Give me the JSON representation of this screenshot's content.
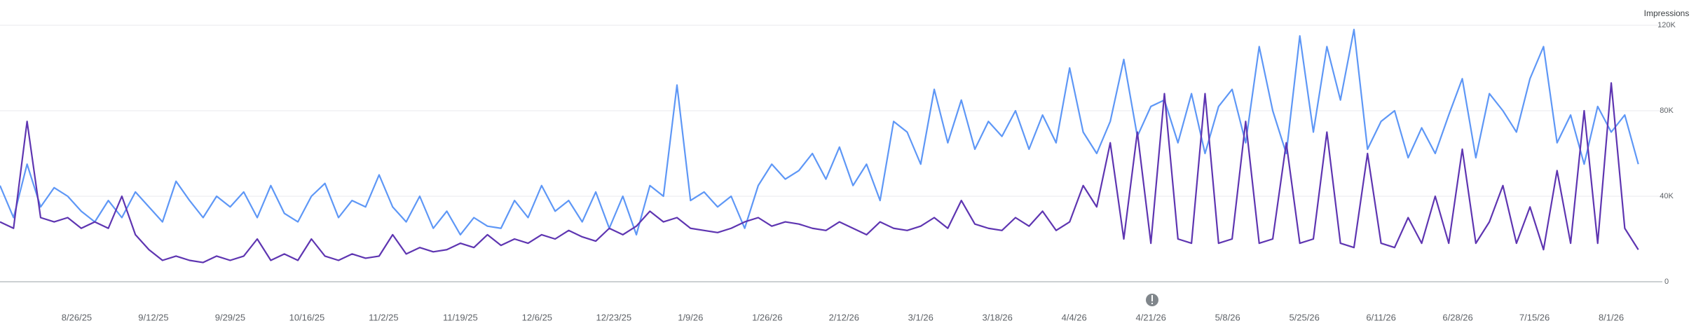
{
  "chart_data": {
    "type": "line",
    "y_label": "Impressions",
    "x": [
      "2025-08-09",
      "2025-08-12",
      "2025-08-15",
      "2025-08-18",
      "2025-08-21",
      "2025-08-24",
      "2025-08-27",
      "2025-08-30",
      "2025-09-02",
      "2025-09-05",
      "2025-09-08",
      "2025-09-11",
      "2025-09-14",
      "2025-09-17",
      "2025-09-20",
      "2025-09-23",
      "2025-09-26",
      "2025-09-29",
      "2025-10-02",
      "2025-10-05",
      "2025-10-08",
      "2025-10-11",
      "2025-10-14",
      "2025-10-17",
      "2025-10-20",
      "2025-10-23",
      "2025-10-26",
      "2025-10-29",
      "2025-11-01",
      "2025-11-04",
      "2025-11-07",
      "2025-11-10",
      "2025-11-13",
      "2025-11-16",
      "2025-11-19",
      "2025-11-22",
      "2025-11-25",
      "2025-11-28",
      "2025-12-01",
      "2025-12-04",
      "2025-12-07",
      "2025-12-10",
      "2025-12-13",
      "2025-12-16",
      "2025-12-19",
      "2025-12-22",
      "2025-12-25",
      "2025-12-28",
      "2025-12-31",
      "2026-01-03",
      "2026-01-06",
      "2026-01-09",
      "2026-01-12",
      "2026-01-15",
      "2026-01-18",
      "2026-01-21",
      "2026-01-24",
      "2026-01-27",
      "2026-01-30",
      "2026-02-02",
      "2026-02-05",
      "2026-02-08",
      "2026-02-11",
      "2026-02-14",
      "2026-02-17",
      "2026-02-20",
      "2026-02-23",
      "2026-02-26",
      "2026-03-01",
      "2026-03-04",
      "2026-03-07",
      "2026-03-10",
      "2026-03-13",
      "2026-03-16",
      "2026-03-19",
      "2026-03-22",
      "2026-03-25",
      "2026-03-28",
      "2026-03-31",
      "2026-04-03",
      "2026-04-06",
      "2026-04-09",
      "2026-04-12",
      "2026-04-15",
      "2026-04-18",
      "2026-04-21",
      "2026-04-24",
      "2026-04-27",
      "2026-04-30",
      "2026-05-03",
      "2026-05-06",
      "2026-05-09",
      "2026-05-12",
      "2026-05-15",
      "2026-05-18",
      "2026-05-21",
      "2026-05-24",
      "2026-05-27",
      "2026-05-30",
      "2026-06-02",
      "2026-06-05",
      "2026-06-08",
      "2026-06-11",
      "2026-06-14",
      "2026-06-17",
      "2026-06-20",
      "2026-06-23",
      "2026-06-26",
      "2026-06-29",
      "2026-07-02",
      "2026-07-05",
      "2026-07-08",
      "2026-07-11",
      "2026-07-14",
      "2026-07-17",
      "2026-07-20",
      "2026-07-23",
      "2026-07-26",
      "2026-07-29",
      "2026-08-01",
      "2026-08-04",
      "2026-08-07"
    ],
    "series": [
      {
        "color": "#5e97f6",
        "values": [
          45000,
          30000,
          55000,
          35000,
          44000,
          40000,
          33000,
          28000,
          38000,
          30000,
          42000,
          35000,
          28000,
          47000,
          38000,
          30000,
          40000,
          35000,
          42000,
          30000,
          45000,
          32000,
          28000,
          40000,
          46000,
          30000,
          38000,
          35000,
          50000,
          35000,
          28000,
          40000,
          25000,
          33000,
          22000,
          30000,
          26000,
          25000,
          38000,
          30000,
          45000,
          33000,
          38000,
          28000,
          42000,
          25000,
          40000,
          22000,
          45000,
          40000,
          92000,
          38000,
          42000,
          35000,
          40000,
          25000,
          45000,
          55000,
          48000,
          52000,
          60000,
          48000,
          63000,
          45000,
          55000,
          38000,
          75000,
          70000,
          55000,
          90000,
          65000,
          85000,
          62000,
          75000,
          68000,
          80000,
          62000,
          78000,
          65000,
          100000,
          70000,
          60000,
          75000,
          104000,
          68000,
          82000,
          85000,
          65000,
          88000,
          60000,
          82000,
          90000,
          65000,
          110000,
          80000,
          60000,
          115000,
          70000,
          110000,
          85000,
          118000,
          62000,
          75000,
          80000,
          58000,
          72000,
          60000,
          78000,
          95000,
          58000,
          88000,
          80000,
          70000,
          95000,
          110000,
          65000,
          78000,
          55000,
          82000,
          70000,
          78000,
          55000
        ]
      },
      {
        "color": "#5e35b1",
        "values": [
          28000,
          25000,
          75000,
          30000,
          28000,
          30000,
          25000,
          28000,
          25000,
          40000,
          22000,
          15000,
          10000,
          12000,
          10000,
          9000,
          12000,
          10000,
          12000,
          20000,
          10000,
          13000,
          10000,
          20000,
          12000,
          10000,
          13000,
          11000,
          12000,
          22000,
          13000,
          16000,
          14000,
          15000,
          18000,
          16000,
          22000,
          17000,
          20000,
          18000,
          22000,
          20000,
          24000,
          21000,
          19000,
          25000,
          22000,
          26000,
          33000,
          28000,
          30000,
          25000,
          24000,
          23000,
          25000,
          28000,
          30000,
          26000,
          28000,
          27000,
          25000,
          24000,
          28000,
          25000,
          22000,
          28000,
          25000,
          24000,
          26000,
          30000,
          25000,
          38000,
          27000,
          25000,
          24000,
          30000,
          26000,
          33000,
          24000,
          28000,
          45000,
          35000,
          65000,
          20000,
          70000,
          18000,
          88000,
          20000,
          18000,
          88000,
          18000,
          20000,
          75000,
          18000,
          20000,
          65000,
          18000,
          20000,
          70000,
          18000,
          16000,
          60000,
          18000,
          16000,
          30000,
          18000,
          40000,
          18000,
          62000,
          18000,
          28000,
          45000,
          18000,
          35000,
          15000,
          52000,
          18000,
          80000,
          18000,
          93000,
          25000,
          15000
        ]
      }
    ],
    "xlim": [
      "2025-08-09",
      "2026-08-10"
    ],
    "xticks": [
      {
        "value": "2025-08-26",
        "label": "8/26/25"
      },
      {
        "value": "2025-09-12",
        "label": "9/12/25"
      },
      {
        "value": "2025-09-29",
        "label": "9/29/25"
      },
      {
        "value": "2025-10-16",
        "label": "10/16/25"
      },
      {
        "value": "2025-11-02",
        "label": "11/2/25"
      },
      {
        "value": "2025-11-19",
        "label": "11/19/25"
      },
      {
        "value": "2025-12-06",
        "label": "12/6/25"
      },
      {
        "value": "2025-12-23",
        "label": "12/23/25"
      },
      {
        "value": "2026-01-09",
        "label": "1/9/26"
      },
      {
        "value": "2026-01-26",
        "label": "1/26/26"
      },
      {
        "value": "2026-02-12",
        "label": "2/12/26"
      },
      {
        "value": "2026-03-01",
        "label": "3/1/26"
      },
      {
        "value": "2026-03-18",
        "label": "3/18/26"
      },
      {
        "value": "2026-04-04",
        "label": "4/4/26"
      },
      {
        "value": "2026-04-21",
        "label": "4/21/26"
      },
      {
        "value": "2026-05-08",
        "label": "5/8/26"
      },
      {
        "value": "2026-05-25",
        "label": "5/25/26"
      },
      {
        "value": "2026-06-11",
        "label": "6/11/26"
      },
      {
        "value": "2026-06-28",
        "label": "6/28/26"
      },
      {
        "value": "2026-07-15",
        "label": "7/15/26"
      },
      {
        "value": "2026-08-01",
        "label": "8/1/26"
      }
    ],
    "ylim": [
      0,
      120000
    ],
    "yticks": [
      0,
      {
        "value": 40000,
        "label": "40K"
      },
      {
        "value": 80000,
        "label": "80K"
      },
      {
        "value": 120000,
        "label": "120K"
      }
    ],
    "grid": true
  }
}
